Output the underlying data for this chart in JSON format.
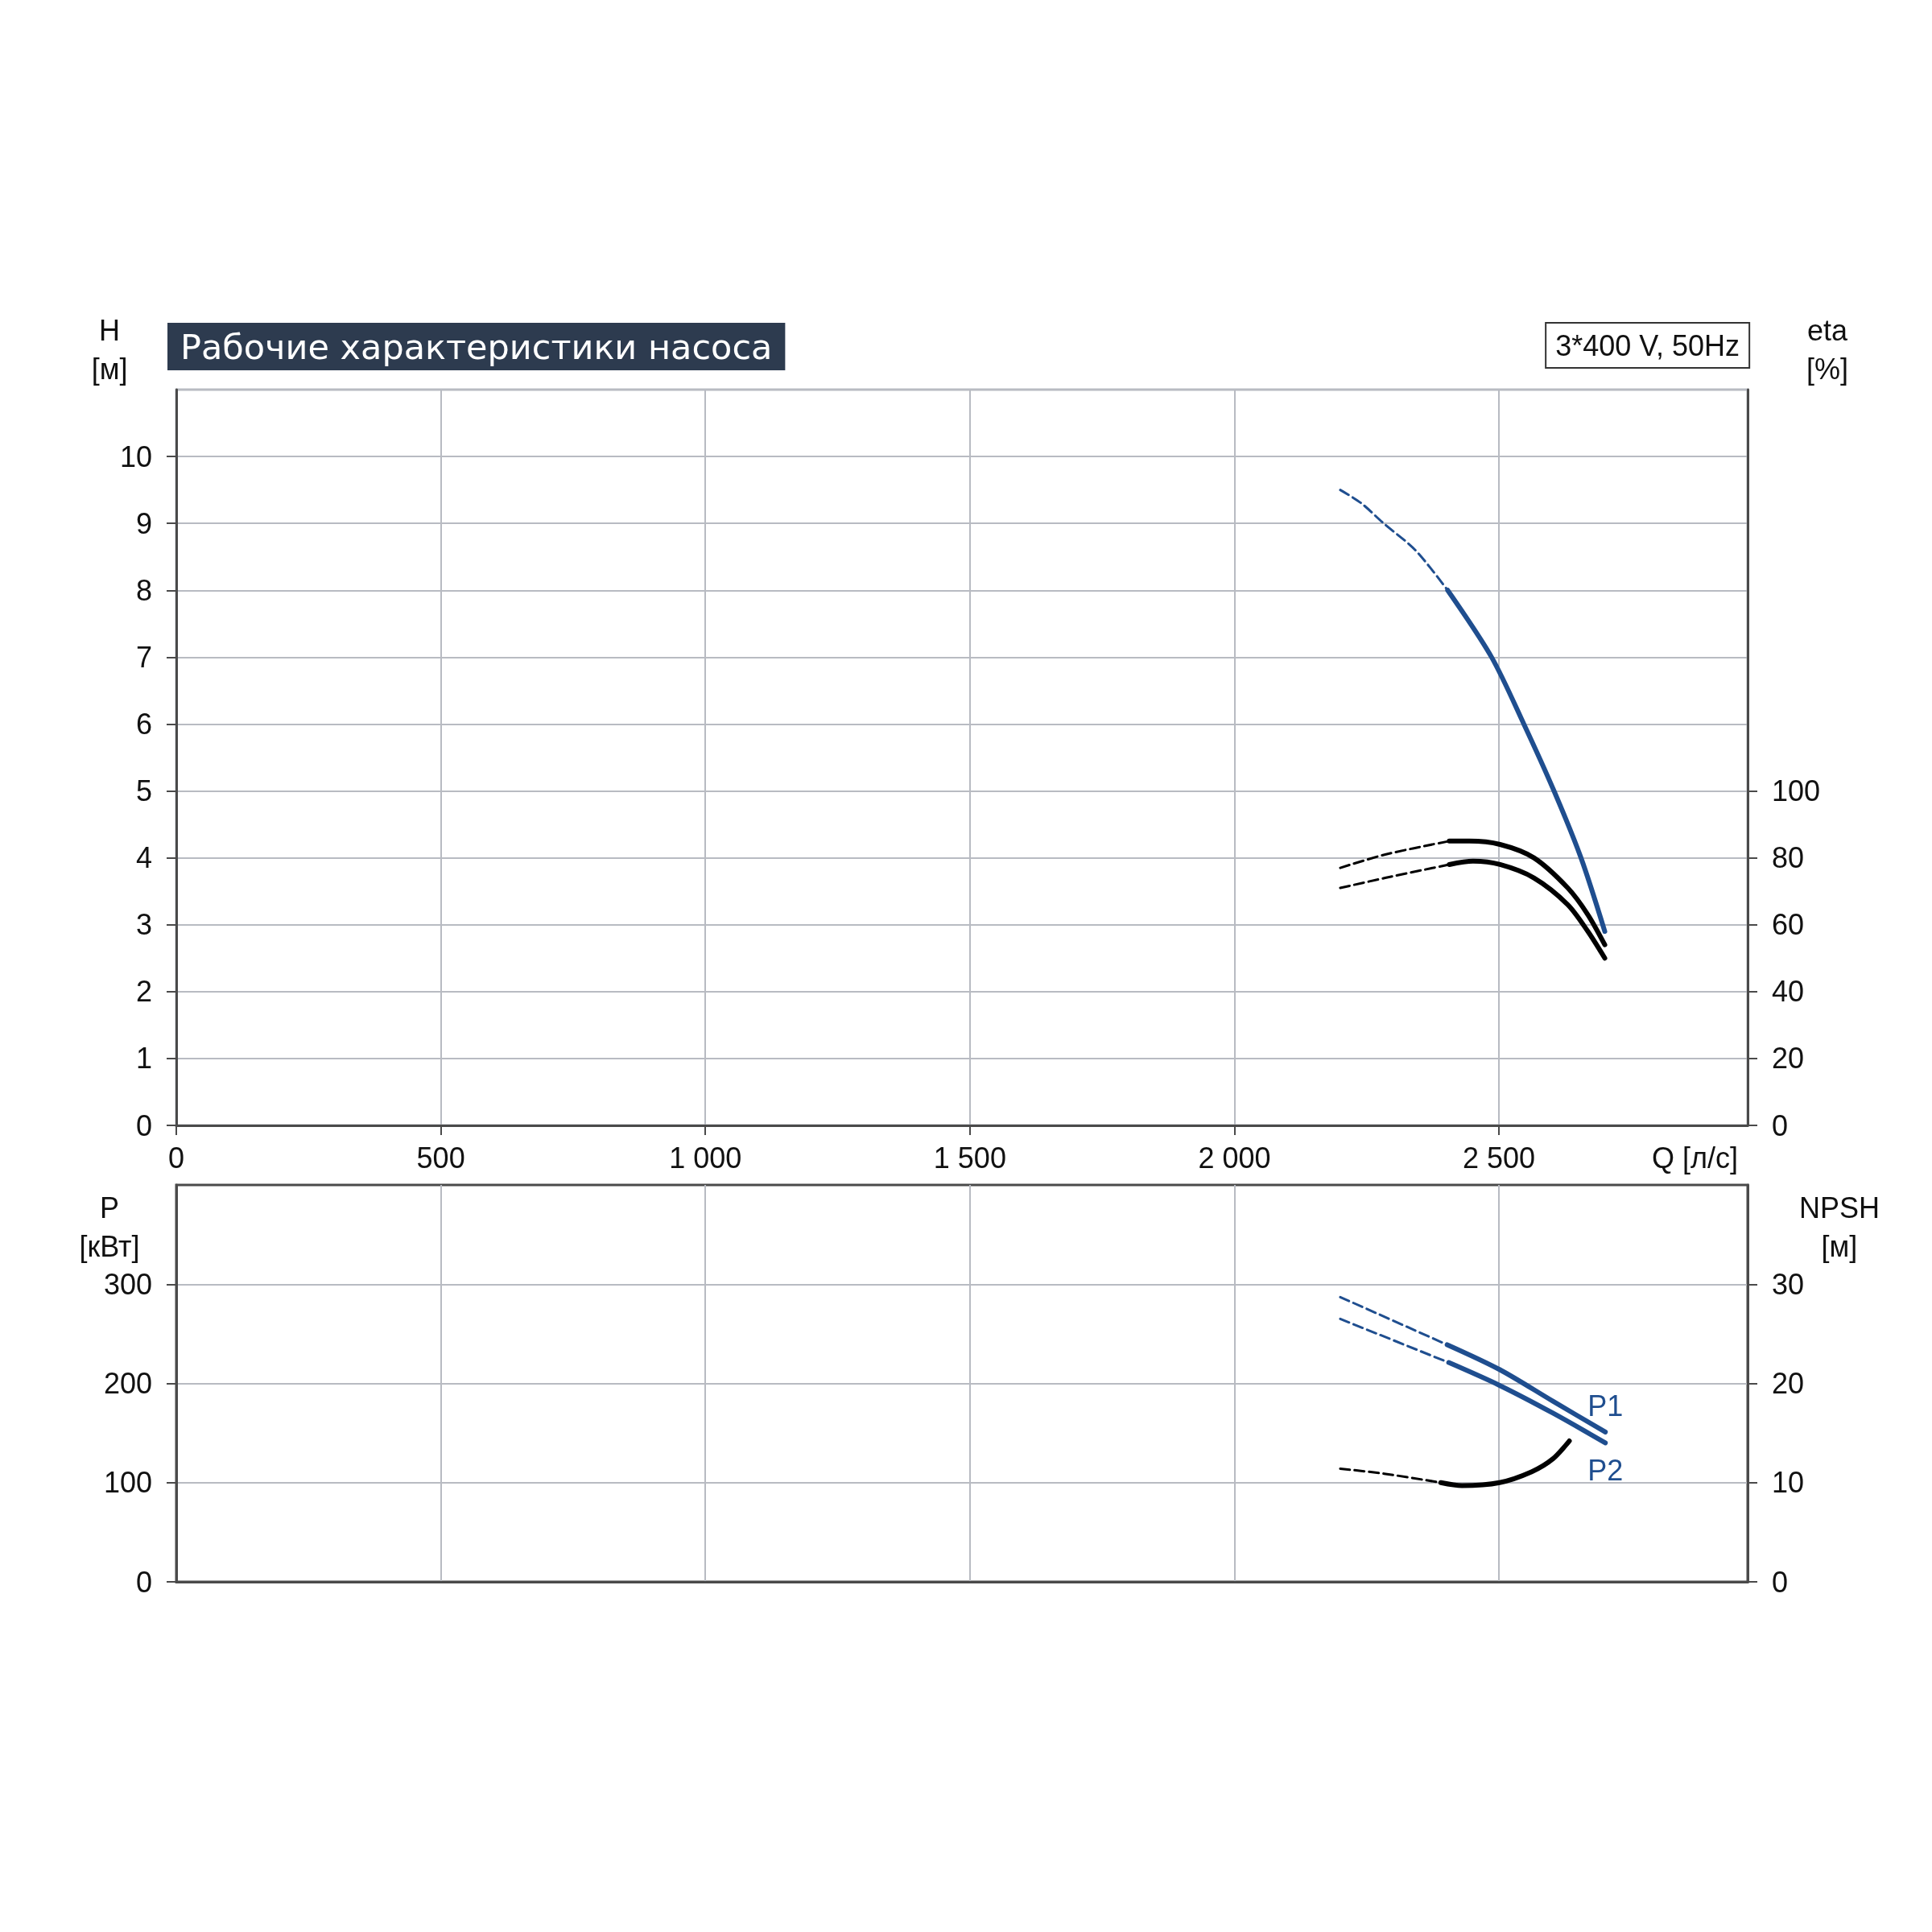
{
  "chart_data": [
    {
      "type": "line",
      "title": "Рабочие характеристики насоса",
      "subtitle": "3*400 V, 50Hz",
      "xlabel": "Q [л/с]",
      "ylabel": "H [м]",
      "y2label": "eta [%]",
      "xlim": [
        0,
        2970
      ],
      "xticks": [
        0,
        500,
        {
          "value": 1000,
          "label": "1 000"
        },
        {
          "value": 1500,
          "label": "1 500"
        },
        {
          "value": 2000,
          "label": "2 000"
        },
        {
          "value": 2500,
          "label": "2 500"
        }
      ],
      "ylim": [
        0,
        11
      ],
      "yticks": [
        0,
        1,
        2,
        3,
        4,
        5,
        6,
        7,
        8,
        9,
        10
      ],
      "y2lim": [
        0,
        220
      ],
      "y2ticks": [
        0,
        20,
        40,
        60,
        80,
        100
      ],
      "grid": true,
      "series": [
        {
          "color": "#1f4e8f",
          "line_style": "dashed",
          "x": [
            2200,
            2240,
            2282,
            2342,
            2403
          ],
          "values": [
            9.5,
            9.3,
            9.0,
            8.6,
            8.0
          ]
        },
        {
          "color": "#1f4e8f",
          "line_style": "solid",
          "x": [
            2403,
            2486,
            2547,
            2604,
            2655,
            2700
          ],
          "values": [
            8.0,
            7.0,
            6.0,
            5.0,
            4.0,
            2.9
          ]
        },
        {
          "color": "#000000",
          "line_style": "dashed",
          "axis": "y2",
          "x": [
            2200,
            2285,
            2406
          ],
          "values": [
            77,
            81,
            85
          ]
        },
        {
          "color": "#000000",
          "line_style": "solid",
          "axis": "y2",
          "x": [
            2406,
            2444,
            2502,
            2566,
            2630,
            2668,
            2700
          ],
          "values": [
            85,
            85,
            84,
            80,
            71,
            63,
            54
          ]
        },
        {
          "color": "#000000",
          "line_style": "dashed",
          "axis": "y2",
          "x": [
            2200,
            2285,
            2406
          ],
          "values": [
            71,
            74,
            78
          ]
        },
        {
          "color": "#000000",
          "line_style": "solid",
          "axis": "y2",
          "x": [
            2406,
            2451,
            2502,
            2566,
            2630,
            2668,
            2700
          ],
          "values": [
            78,
            79,
            78,
            74,
            66,
            58,
            50
          ]
        }
      ]
    },
    {
      "type": "line",
      "ylabel": "P [кВт]",
      "y2label": "NPSH [м]",
      "xlim": [
        0,
        2970
      ],
      "xticks": [
        0,
        500,
        1000,
        1500,
        2000,
        2500
      ],
      "ylim": [
        0,
        400
      ],
      "yticks": [
        0,
        100,
        200,
        300
      ],
      "y2lim": [
        0,
        40
      ],
      "y2ticks": [
        0,
        10,
        20,
        30
      ],
      "grid": true,
      "tick_labels": "y",
      "series": [
        {
          "color": "#1f4e8f",
          "line_style": "dashed",
          "x": [
            2200,
            2402
          ],
          "values": [
            287,
            239
          ]
        },
        {
          "name": "P1",
          "color": "#1f4e8f",
          "line_style": "solid",
          "x": [
            2402,
            2501,
            2602,
            2701
          ],
          "values": [
            239,
            214,
            182,
            151
          ]
        },
        {
          "color": "#1f4e8f",
          "line_style": "dashed",
          "x": [
            2200,
            2405
          ],
          "values": [
            265,
            221
          ]
        },
        {
          "name": "P2",
          "color": "#1f4e8f",
          "line_style": "solid",
          "x": [
            2405,
            2501,
            2602,
            2701
          ],
          "values": [
            221,
            198,
            170,
            140
          ]
        },
        {
          "color": "#000000",
          "line_style": "dashed",
          "axis": "y2",
          "x": [
            2200,
            2283,
            2390
          ],
          "values": [
            11.4,
            10.9,
            10.0
          ]
        },
        {
          "color": "#000000",
          "line_style": "solid",
          "axis": "y2",
          "x": [
            2390,
            2430,
            2501,
            2562,
            2602,
            2633
          ],
          "values": [
            10.0,
            9.7,
            10.0,
            11.1,
            12.4,
            14.2
          ]
        }
      ]
    }
  ]
}
